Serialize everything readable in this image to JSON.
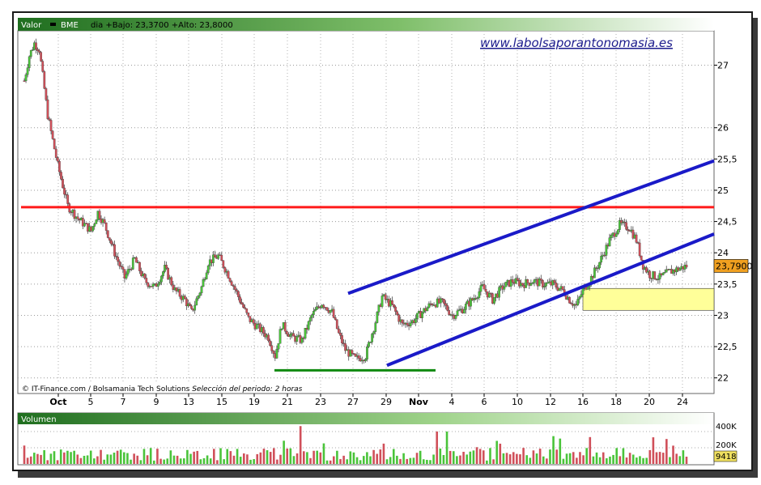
{
  "header": {
    "valor_label": "Valor",
    "ticker": "BME",
    "info": "dia +Bajo: 23,3700 +Alto: 23,8000"
  },
  "watermark": "www.labolsaporantonomasia.es",
  "footer": {
    "source": "IT-Finance.com / Bolsamania Tech Solutions",
    "period": "Selección del periodo: 2 horas"
  },
  "volume_panel": {
    "label": "Volumen",
    "ticks": [
      "400K",
      "200K"
    ],
    "last_value": "9418"
  },
  "last_price": "23,7900",
  "colors": {
    "up": "#4ac43a",
    "down": "#d0505a",
    "resistance": "#ff1a1a",
    "channel": "#1a1ac8",
    "support": "#108a10",
    "zone": "#ffff99",
    "header_bg": "#2e8a2e",
    "price_label_bg": "#f0a020"
  },
  "chart_data": [
    {
      "type": "candlestick",
      "ylim": [
        21.75,
        27.55
      ],
      "y_ticks": [
        "27",
        "26",
        "25,5",
        "25",
        "24,5",
        "24",
        "23,5",
        "23",
        "22,5",
        "22"
      ],
      "x_ticks": [
        "Oct",
        "5",
        "7",
        "9",
        "13",
        "15",
        "19",
        "21",
        "23",
        "27",
        "29",
        "Nov",
        "4",
        "6",
        "10",
        "12",
        "16",
        "18",
        "20",
        "24"
      ],
      "waypoints": [
        [
          0,
          26.75
        ],
        [
          3,
          27.15
        ],
        [
          6,
          27.35
        ],
        [
          9,
          27.25
        ],
        [
          14,
          26.2
        ],
        [
          20,
          25.4
        ],
        [
          26,
          24.75
        ],
        [
          32,
          24.55
        ],
        [
          36,
          24.45
        ],
        [
          40,
          24.35
        ],
        [
          44,
          24.65
        ],
        [
          48,
          24.45
        ],
        [
          54,
          24.0
        ],
        [
          60,
          23.6
        ],
        [
          66,
          23.9
        ],
        [
          72,
          23.55
        ],
        [
          78,
          23.45
        ],
        [
          84,
          23.75
        ],
        [
          90,
          23.4
        ],
        [
          96,
          23.25
        ],
        [
          100,
          23.05
        ],
        [
          106,
          23.45
        ],
        [
          110,
          23.85
        ],
        [
          116,
          23.95
        ],
        [
          122,
          23.65
        ],
        [
          128,
          23.3
        ],
        [
          134,
          22.95
        ],
        [
          140,
          22.8
        ],
        [
          146,
          22.65
        ],
        [
          150,
          22.35
        ],
        [
          154,
          22.85
        ],
        [
          160,
          22.65
        ],
        [
          166,
          22.6
        ],
        [
          172,
          23.0
        ],
        [
          178,
          23.2
        ],
        [
          184,
          23.05
        ],
        [
          188,
          22.7
        ],
        [
          192,
          22.45
        ],
        [
          198,
          22.3
        ],
        [
          204,
          22.35
        ],
        [
          210,
          22.9
        ],
        [
          214,
          23.3
        ],
        [
          220,
          23.15
        ],
        [
          226,
          22.85
        ],
        [
          232,
          22.9
        ],
        [
          238,
          23.05
        ],
        [
          244,
          23.2
        ],
        [
          250,
          23.2
        ],
        [
          256,
          23.0
        ],
        [
          262,
          23.1
        ],
        [
          268,
          23.25
        ],
        [
          274,
          23.45
        ],
        [
          280,
          23.25
        ],
        [
          286,
          23.45
        ],
        [
          292,
          23.55
        ],
        [
          298,
          23.5
        ],
        [
          304,
          23.55
        ],
        [
          310,
          23.5
        ],
        [
          316,
          23.5
        ],
        [
          322,
          23.4
        ],
        [
          326,
          23.25
        ],
        [
          330,
          23.15
        ],
        [
          334,
          23.4
        ],
        [
          338,
          23.55
        ],
        [
          344,
          23.85
        ],
        [
          350,
          24.2
        ],
        [
          356,
          24.45
        ],
        [
          362,
          24.4
        ],
        [
          366,
          24.2
        ],
        [
          370,
          23.8
        ],
        [
          374,
          23.65
        ],
        [
          380,
          23.6
        ],
        [
          386,
          23.7
        ],
        [
          392,
          23.75
        ],
        [
          396,
          23.79
        ]
      ],
      "channel_upper": [
        [
          23.13,
          23.35
        ],
        [
          25.13,
          25.47
        ]
      ],
      "channel_lower": [
        [
          23.13,
          22.2
        ],
        [
          25.13,
          24.3
        ]
      ],
      "resistance": 24.73,
      "support": 22.12,
      "zone": [
        23.08,
        23.43
      ]
    },
    {
      "type": "bar",
      "title": "Volumen",
      "ylim": [
        0,
        500000
      ],
      "y_ticks": [
        "400K",
        "200K"
      ],
      "last_value": 9418
    }
  ]
}
